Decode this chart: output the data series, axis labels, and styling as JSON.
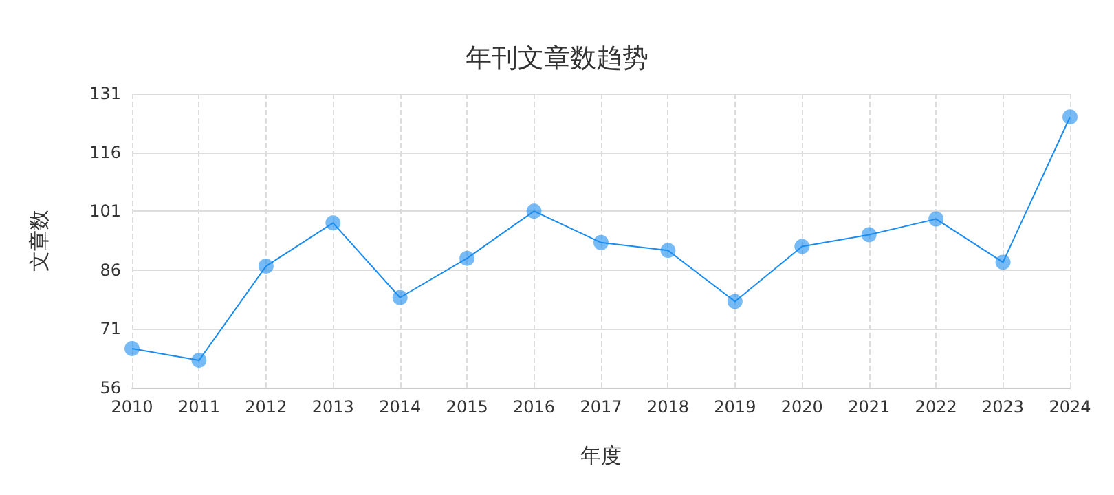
{
  "chart_data": {
    "type": "line",
    "title": "年刊文章数趋势",
    "xlabel": "年度",
    "ylabel": "文章数",
    "categories": [
      "2010",
      "2011",
      "2012",
      "2013",
      "2014",
      "2015",
      "2016",
      "2017",
      "2018",
      "2019",
      "2020",
      "2021",
      "2022",
      "2023",
      "2024"
    ],
    "series": [
      {
        "color": "#1a8cf0",
        "values": [
          66,
          63,
          87,
          98,
          79,
          89,
          101,
          93,
          91,
          78,
          92,
          95,
          99,
          88,
          125
        ]
      }
    ],
    "ylim": [
      56,
      131
    ],
    "yticks": [
      56,
      71,
      86,
      101,
      116,
      131
    ],
    "grid": true,
    "marker": "circle",
    "line_style": "solid"
  }
}
